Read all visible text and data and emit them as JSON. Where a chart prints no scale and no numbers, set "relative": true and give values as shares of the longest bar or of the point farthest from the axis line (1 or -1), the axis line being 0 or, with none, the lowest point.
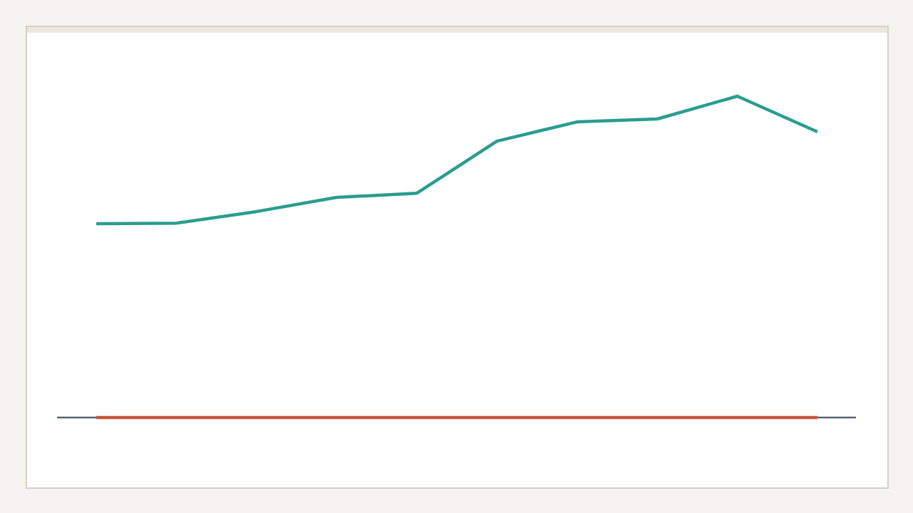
{
  "chart_data": {
    "type": "line",
    "relative": true,
    "categories": [
      null,
      null,
      null,
      null,
      null,
      null,
      null,
      null,
      null,
      null
    ],
    "series": [
      {
        "color": "#2a9d8f",
        "values": [
          0.603,
          0.605,
          0.641,
          0.685,
          0.698,
          0.86,
          0.92,
          0.929,
          1,
          0.889
        ]
      },
      {
        "color": "#c8553d",
        "values": [
          0,
          0,
          0,
          0,
          0,
          0,
          0,
          0,
          0,
          0
        ]
      }
    ]
  }
}
